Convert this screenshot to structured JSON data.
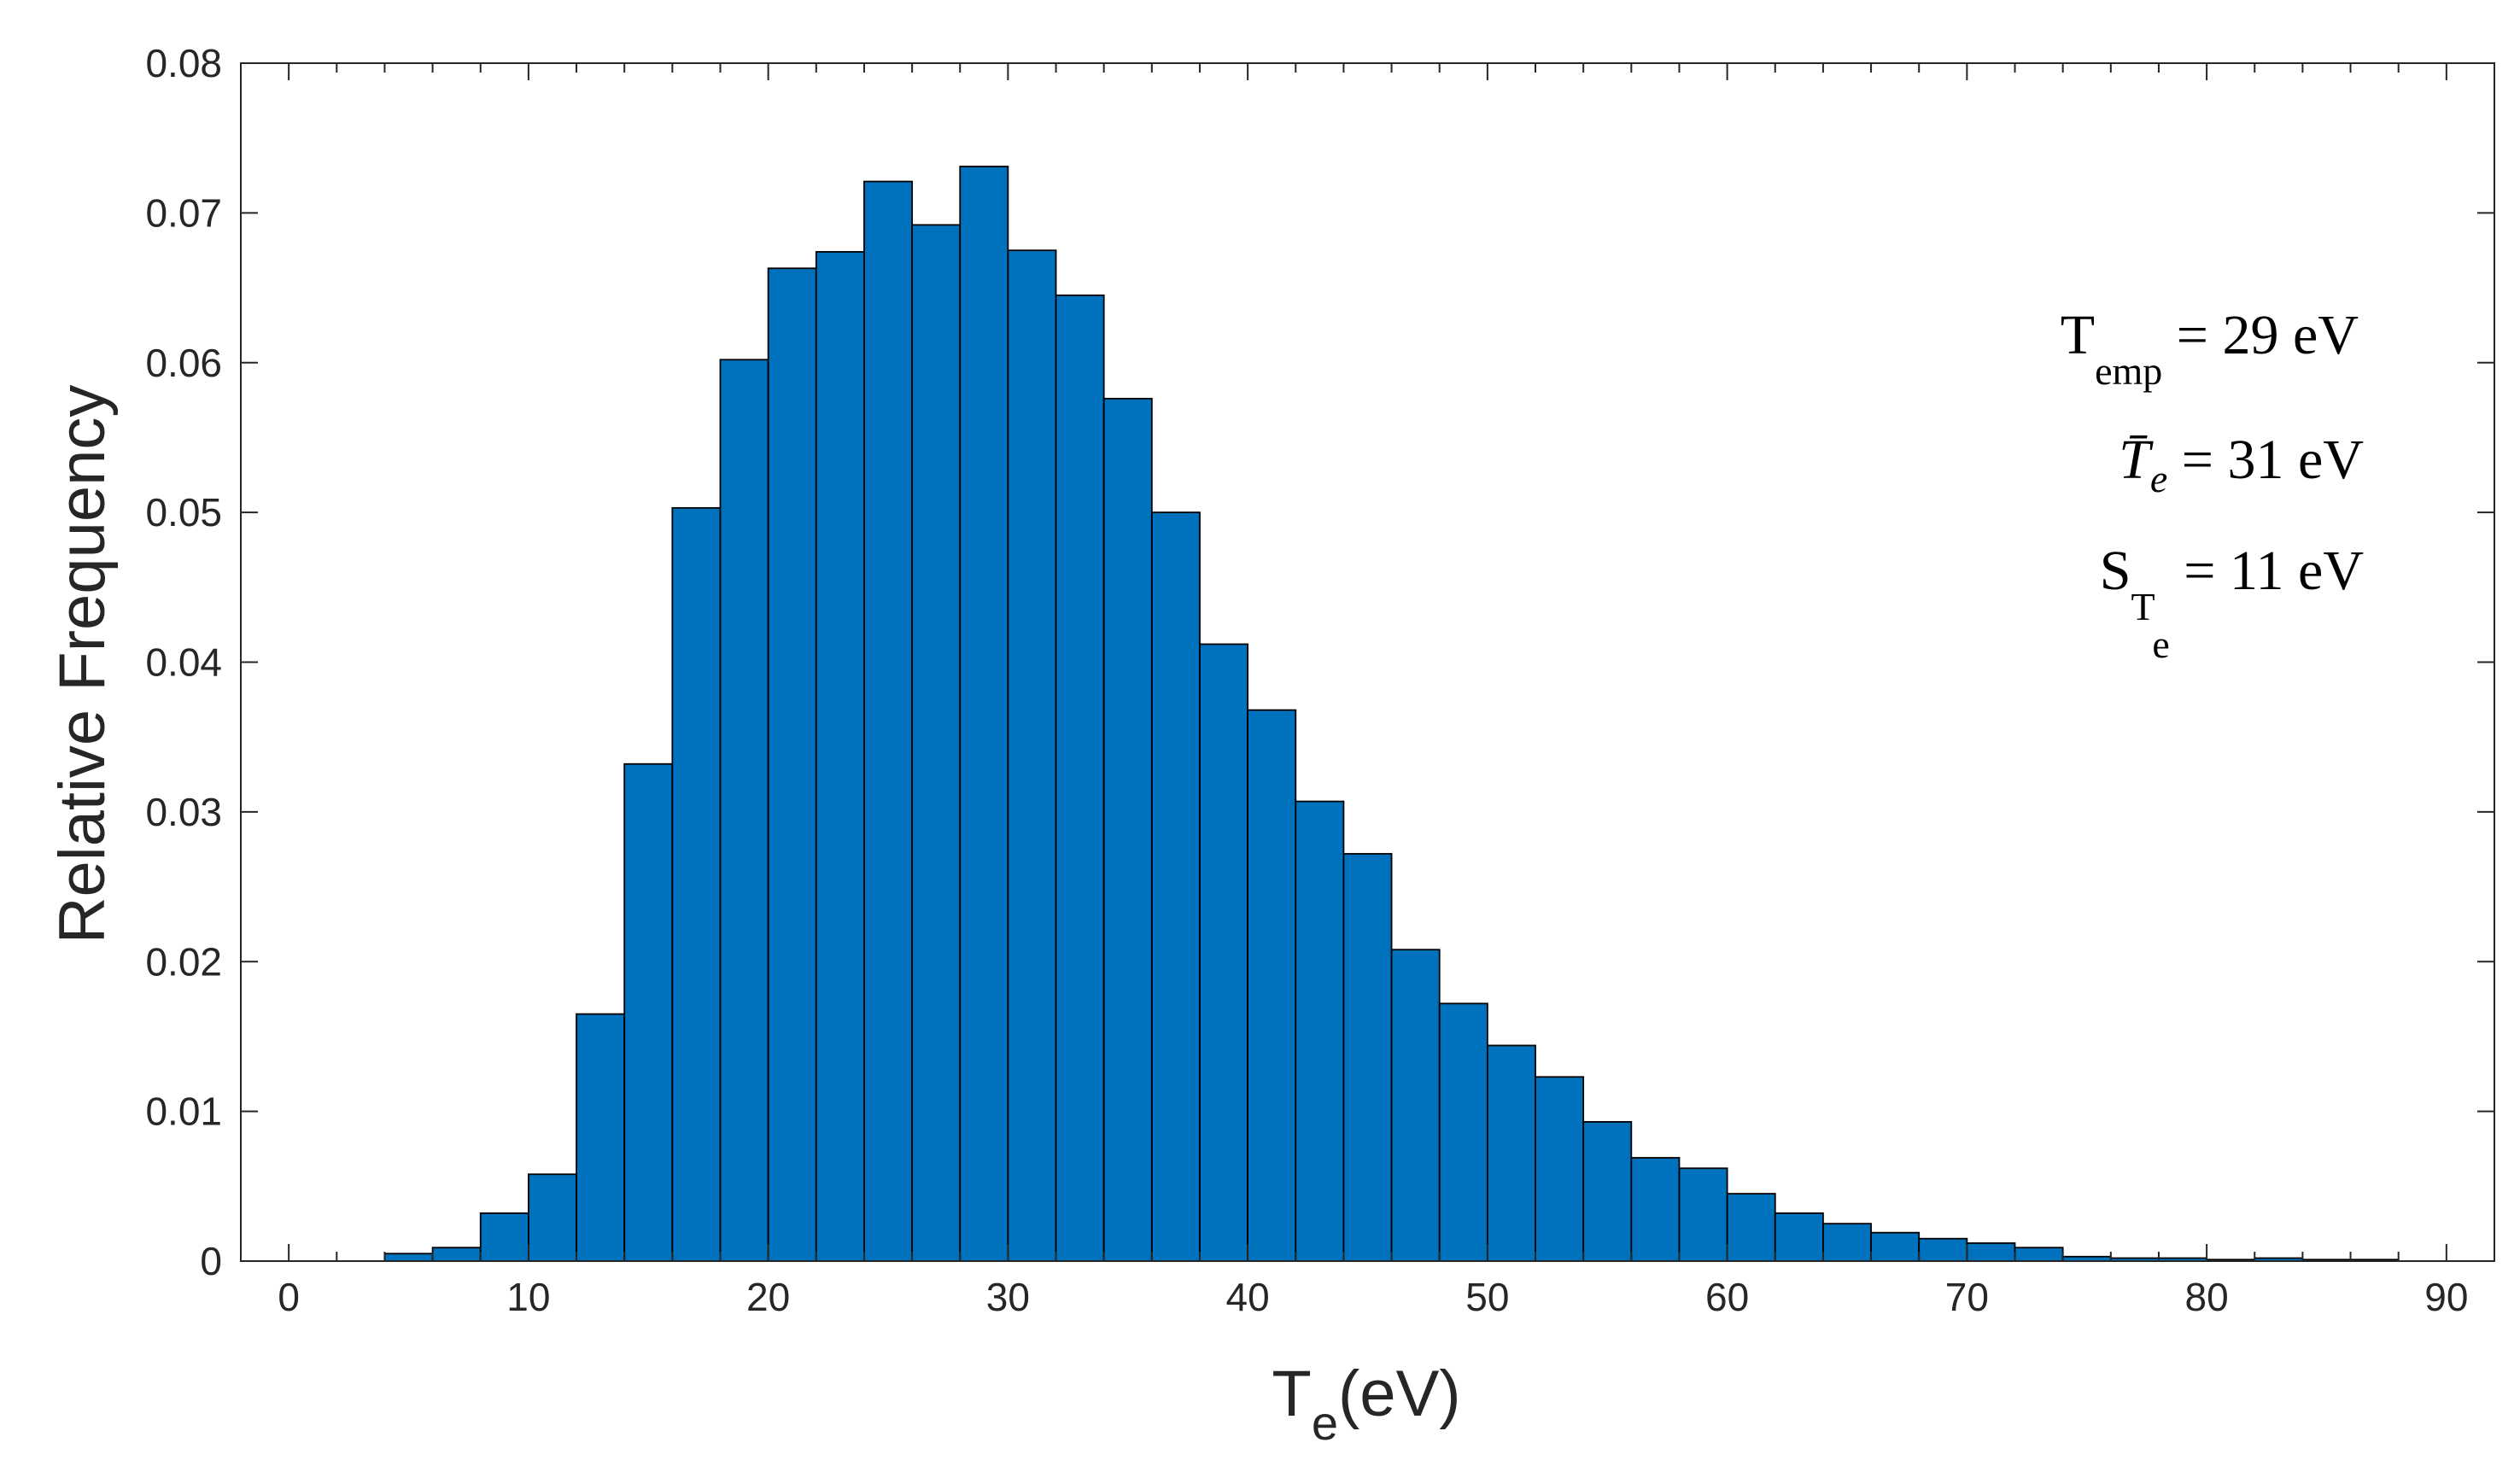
{
  "chart_data": {
    "type": "bar",
    "title": "",
    "xlabel": {
      "main": "T",
      "sub": "e",
      "rest": "(eV)"
    },
    "ylabel": "Relative Frequency",
    "xlim": [
      -2,
      92
    ],
    "ylim": [
      0,
      0.08
    ],
    "bin_width": 2,
    "x_ticks": [
      0,
      10,
      20,
      30,
      40,
      50,
      60,
      70,
      80,
      90
    ],
    "x_tick_labels": [
      "0",
      "10",
      "20",
      "30",
      "40",
      "50",
      "60",
      "70",
      "80",
      "90"
    ],
    "y_ticks": [
      0,
      0.01,
      0.02,
      0.03,
      0.04,
      0.05,
      0.06,
      0.07,
      0.08
    ],
    "y_tick_labels": [
      "0",
      "0.01",
      "0.02",
      "0.03",
      "0.04",
      "0.05",
      "0.06",
      "0.07",
      "0.08"
    ],
    "bin_edges_left": [
      4,
      6,
      8,
      10,
      12,
      14,
      16,
      18,
      20,
      22,
      24,
      26,
      28,
      30,
      32,
      34,
      36,
      38,
      40,
      42,
      44,
      46,
      48,
      50,
      52,
      54,
      56,
      58,
      60,
      62,
      64,
      66,
      68,
      70,
      72,
      74,
      76,
      78,
      80,
      82,
      84,
      86
    ],
    "values": [
      0.0005,
      0.0009,
      0.0032,
      0.0058,
      0.0165,
      0.0332,
      0.0503,
      0.0602,
      0.0663,
      0.0674,
      0.0721,
      0.0692,
      0.0731,
      0.0675,
      0.0645,
      0.0576,
      0.05,
      0.0412,
      0.0368,
      0.0307,
      0.0272,
      0.0208,
      0.0172,
      0.0144,
      0.0123,
      0.0093,
      0.0069,
      0.0062,
      0.0045,
      0.0032,
      0.0025,
      0.0019,
      0.0015,
      0.0012,
      0.0009,
      0.0003,
      0.0002,
      0.0002,
      0.0001,
      0.0002,
      0.0001,
      0.0001
    ],
    "bar_color": "#0072BD",
    "bar_edge_color": "#000000",
    "grid": false,
    "annotations": [
      {
        "main": "T",
        "sub": "emp",
        "eq": "=",
        "value": "29 eV",
        "italic": false
      },
      {
        "main": "T̄",
        "sub": "e",
        "eq": "=",
        "value": "31 eV",
        "italic": true
      },
      {
        "main": "S",
        "sub": "T",
        "subsub": "e",
        "eq": "=",
        "value": "11 eV",
        "italic": false
      }
    ]
  }
}
